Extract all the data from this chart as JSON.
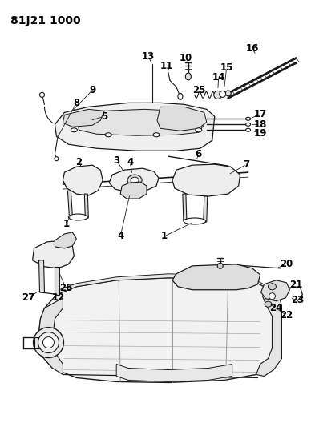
{
  "title": "81J21 1000",
  "bg": "#ffffff",
  "lc": "#1a1a1a",
  "tc": "#000000",
  "title_fs": 10,
  "label_fs": 8.5,
  "fig_w": 3.93,
  "fig_h": 5.33,
  "dpi": 100
}
